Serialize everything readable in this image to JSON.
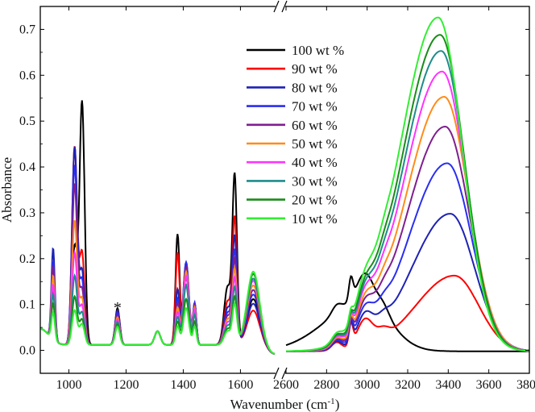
{
  "chart_data": {
    "type": "line",
    "xlabel": "Wavenumber (cm",
    "xlabel_sup": "-1",
    "xlabel_suffix": ")",
    "ylabel": "Absorbance",
    "ylim": [
      -0.05,
      0.75
    ],
    "y_ticks": [
      "0.0",
      "0.1",
      "0.2",
      "0.3",
      "0.4",
      "0.5",
      "0.6",
      "0.7"
    ],
    "x_ticks_left": [
      "1000",
      "1200",
      "1400",
      "1600"
    ],
    "x_ticks_right": [
      "2600",
      "2800",
      "3000",
      "3200",
      "3400",
      "3600",
      "3800"
    ],
    "x_break": [
      1720,
      2600
    ],
    "xlim": [
      900,
      3800
    ],
    "annotation": "*",
    "annotation_x": 1170,
    "series": [
      {
        "name": "100 wt %",
        "color": "#000000",
        "p940": 0.11,
        "p1020": 0.21,
        "p1045": 0.53,
        "p1170": 0.08,
        "p1380": 0.24,
        "p1410": 0.15,
        "p1580": 0.36,
        "p1640": 0.1,
        "p2920": 0.095,
        "oh": 0.11,
        "ohx": 2990
      },
      {
        "name": "90 wt %",
        "color": "#ff0000",
        "p940": 0.12,
        "p1020": 0.43,
        "p1045": 0.2,
        "p1170": 0.075,
        "p1380": 0.2,
        "p1410": 0.15,
        "p1580": 0.27,
        "p1640": 0.075,
        "p2920": 0.09,
        "oh": 0.165,
        "ohx": 3430
      },
      {
        "name": "80 wt %",
        "color": "#1e22b3",
        "p940": 0.2,
        "p1020": 0.43,
        "p1045": 0.16,
        "p1170": 0.075,
        "p1380": 0.12,
        "p1410": 0.18,
        "p1580": 0.23,
        "p1640": 0.09,
        "p2920": 0.085,
        "oh": 0.3,
        "ohx": 3410
      },
      {
        "name": "70 wt %",
        "color": "#2a2ef0",
        "p940": 0.17,
        "p1020": 0.39,
        "p1045": 0.14,
        "p1170": 0.07,
        "p1380": 0.1,
        "p1410": 0.18,
        "p1580": 0.2,
        "p1640": 0.11,
        "p2920": 0.08,
        "oh": 0.41,
        "ohx": 3395
      },
      {
        "name": "60 wt %",
        "color": "#7f1f8f",
        "p940": 0.16,
        "p1020": 0.35,
        "p1045": 0.12,
        "p1170": 0.065,
        "p1380": 0.09,
        "p1410": 0.17,
        "p1580": 0.18,
        "p1640": 0.12,
        "p2920": 0.075,
        "oh": 0.49,
        "ohx": 3385
      },
      {
        "name": "50 wt %",
        "color": "#ff8c1a",
        "p940": 0.14,
        "p1020": 0.27,
        "p1045": 0.1,
        "p1170": 0.06,
        "p1380": 0.08,
        "p1410": 0.16,
        "p1580": 0.16,
        "p1640": 0.13,
        "p2920": 0.07,
        "oh": 0.555,
        "ohx": 3380
      },
      {
        "name": "40 wt %",
        "color": "#ff33ff",
        "p940": 0.12,
        "p1020": 0.2,
        "p1045": 0.085,
        "p1170": 0.055,
        "p1380": 0.07,
        "p1410": 0.15,
        "p1580": 0.14,
        "p1640": 0.14,
        "p2920": 0.065,
        "oh": 0.61,
        "ohx": 3370
      },
      {
        "name": "30 wt %",
        "color": "#1e8c8c",
        "p940": 0.1,
        "p1020": 0.15,
        "p1045": 0.07,
        "p1170": 0.05,
        "p1380": 0.06,
        "p1410": 0.13,
        "p1580": 0.12,
        "p1640": 0.145,
        "p2920": 0.06,
        "oh": 0.655,
        "ohx": 3365
      },
      {
        "name": "20 wt %",
        "color": "#1a8c1a",
        "p940": 0.08,
        "p1020": 0.105,
        "p1045": 0.055,
        "p1170": 0.045,
        "p1380": 0.05,
        "p1410": 0.1,
        "p1580": 0.1,
        "p1640": 0.155,
        "p2920": 0.055,
        "oh": 0.69,
        "ohx": 3360
      },
      {
        "name": "10 wt %",
        "color": "#33ee33",
        "p940": 0.06,
        "p1020": 0.075,
        "p1045": 0.045,
        "p1170": 0.04,
        "p1380": 0.04,
        "p1410": 0.08,
        "p1580": 0.085,
        "p1640": 0.16,
        "p2920": 0.05,
        "oh": 0.728,
        "ohx": 3350
      }
    ]
  }
}
